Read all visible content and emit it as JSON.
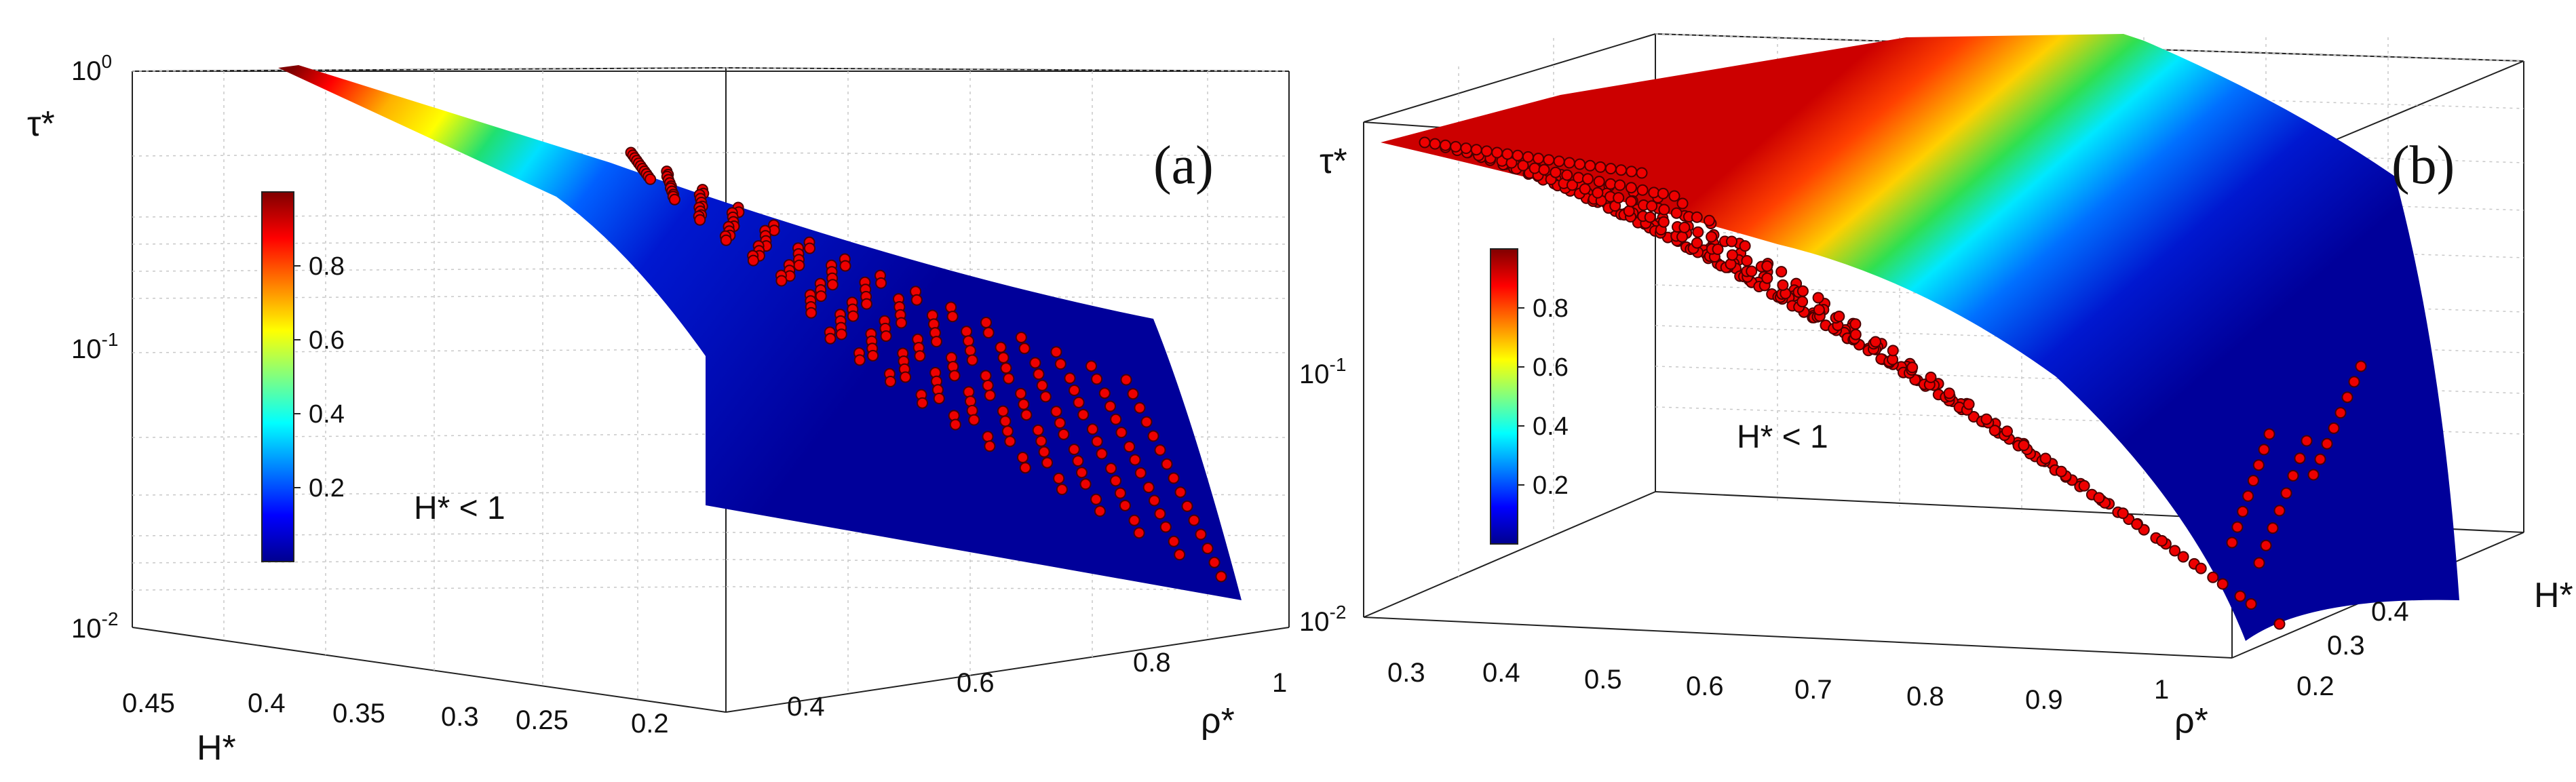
{
  "chart_data": [
    {
      "type": "surface3d",
      "panel_label": "(a)",
      "zlabel": "τ*",
      "xlabel": "ρ*",
      "ylabel": "H*",
      "zscale": "log",
      "zlim": [
        0.01,
        1
      ],
      "xlim": [
        0.2,
        1
      ],
      "ylim": [
        0.2,
        0.47
      ],
      "z_ticks": [
        {
          "base": "10",
          "exp": "0"
        },
        {
          "base": "10",
          "exp": "-1"
        },
        {
          "base": "10",
          "exp": "-2"
        }
      ],
      "x_ticks": [
        "0.4",
        "0.6",
        "0.8",
        "1"
      ],
      "y_ticks": [
        "0.45",
        "0.4",
        "0.35",
        "0.3",
        "0.25",
        "0.2"
      ],
      "annotation": "H* < 1",
      "colorbar_ticks": [
        "0.8",
        "0.6",
        "0.4",
        "0.2"
      ],
      "colormap": "jet",
      "series": [
        {
          "name": "surface",
          "kind": "surface"
        },
        {
          "name": "data points",
          "kind": "scatter",
          "color": "#e60000"
        }
      ]
    },
    {
      "type": "surface3d",
      "panel_label": "(b)",
      "zlabel": "τ*",
      "xlabel": "ρ*",
      "ylabel": "H*",
      "zscale": "log",
      "zlim": [
        0.01,
        1
      ],
      "xlim": [
        0.25,
        1.05
      ],
      "ylim": [
        0.18,
        0.47
      ],
      "z_ticks": [
        {
          "base": "10",
          "exp": "-1"
        },
        {
          "base": "10",
          "exp": "-2"
        }
      ],
      "x_ticks": [
        "0.3",
        "0.4",
        "0.5",
        "0.6",
        "0.7",
        "0.8",
        "0.9",
        "1"
      ],
      "y_ticks": [
        "0.4",
        "0.3",
        "0.2"
      ],
      "annotation": "H* < 1",
      "colorbar_ticks": [
        "0.8",
        "0.6",
        "0.4",
        "0.2"
      ],
      "colormap": "jet",
      "series": [
        {
          "name": "surface",
          "kind": "surface"
        },
        {
          "name": "data points",
          "kind": "scatter",
          "color": "#e60000"
        }
      ]
    }
  ]
}
